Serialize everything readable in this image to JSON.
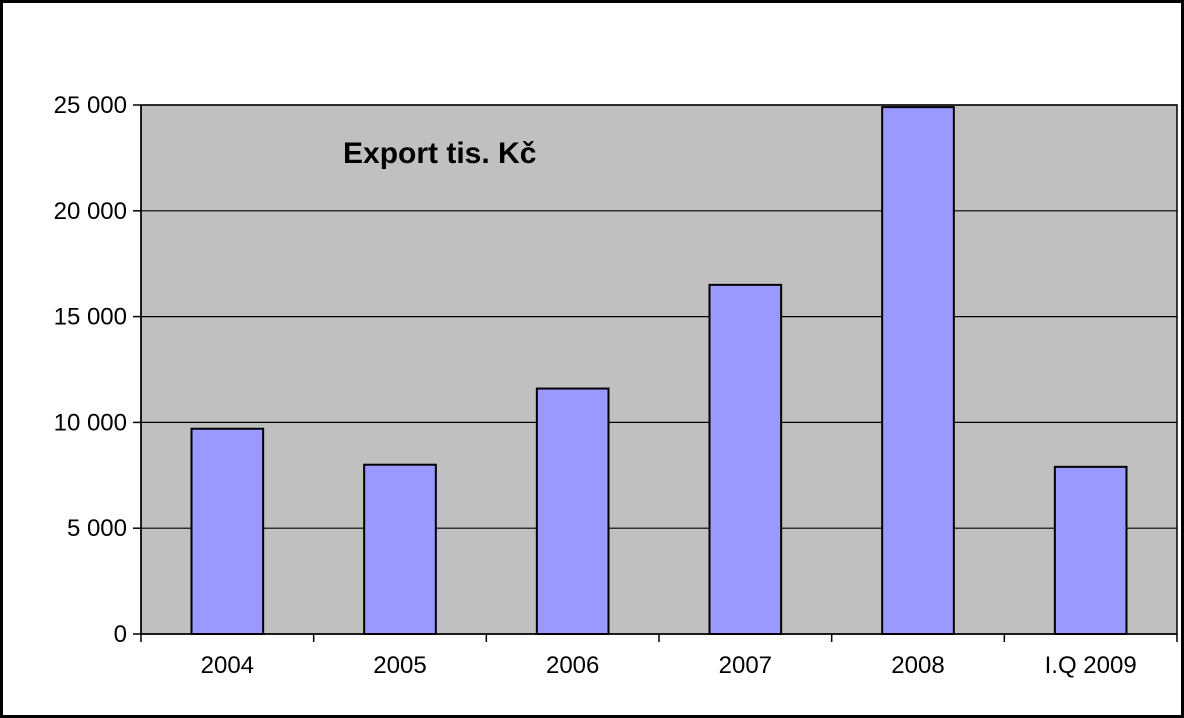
{
  "chart_data": {
    "type": "bar",
    "title": "Export tis. Kč",
    "categories": [
      "2004",
      "2005",
      "2006",
      "2007",
      "2008",
      "I.Q 2009"
    ],
    "values": [
      9700,
      8000,
      11600,
      16500,
      24900,
      7900
    ],
    "ylim": [
      0,
      25000
    ],
    "yticks": [
      0,
      5000,
      10000,
      15000,
      20000,
      25000
    ],
    "ytick_labels": [
      "0",
      "5 000",
      "10 000",
      "15 000",
      "20 000",
      "25 000"
    ],
    "grid": true,
    "legend": false,
    "colors": {
      "bar_fill": "#9999ff",
      "bar_stroke": "#000000",
      "plot_background": "#c0c0c0",
      "gridline": "#000000"
    }
  }
}
